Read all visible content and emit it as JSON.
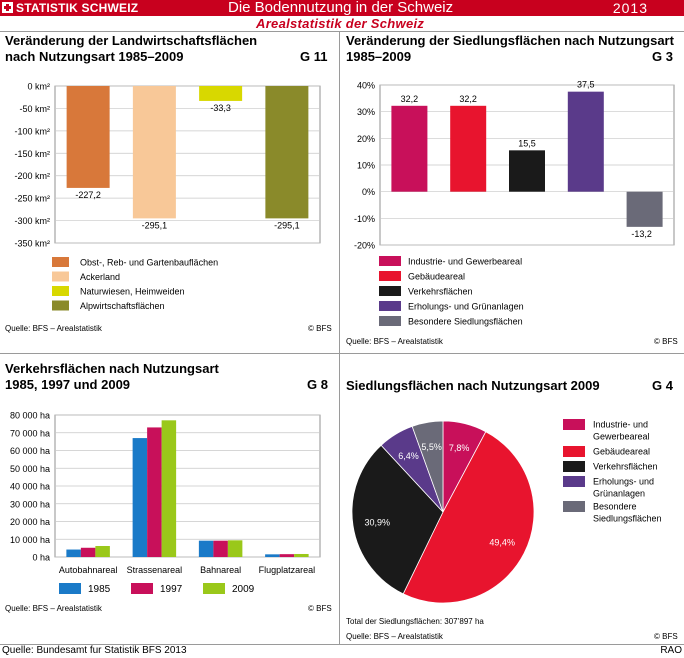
{
  "header": {
    "brand": "STATISTIK SCHWEIZ",
    "title": "Die Bodennutzung in der Schweiz",
    "year": "2013",
    "subtitle": "Arealstatistik der Schweiz"
  },
  "footer": {
    "source": "Quelle: Bundesamt fur Statistik BFS 2013",
    "code": "RAO"
  },
  "panels": {
    "g11": {
      "title_line1": "Veränderung der Landwirtschaftsflächen",
      "title_line2": "nach Nutzungsart 1985–2009",
      "number": "G 11",
      "source": "Quelle: BFS – Arealstatistik",
      "copyright": "© BFS"
    },
    "g3": {
      "title_line1": "Veränderung der Siedlungsflächen nach Nutzungsart",
      "title_line2": "1985–2009",
      "number": "G 3",
      "source": "Quelle: BFS – Arealstatistik",
      "copyright": "© BFS"
    },
    "g8": {
      "title_line1": "Verkehrsflächen nach Nutzungsart",
      "title_line2": "1985, 1997 und 2009",
      "number": "G 8",
      "source": "Quelle: BFS – Arealstatistik",
      "copyright": "© BFS"
    },
    "g4": {
      "title_line1": "Siedlungsflächen nach Nutzungsart 2009",
      "number": "G 4",
      "note": "Total der Siedlungsflächen: 307’897 ha",
      "source": "Quelle: BFS – Arealstatistik",
      "copyright": "© BFS"
    }
  },
  "chart_data": [
    {
      "id": "g11",
      "type": "bar",
      "categories": [
        "Obst-, Reb- und Gartenbauflächen",
        "Ackerland",
        "Naturwiesen, Heimweiden",
        "Alpwirtschaftsflächen"
      ],
      "values": [
        -227.2,
        -295.1,
        -33.3,
        -295.1
      ],
      "value_labels": [
        "-227,2",
        "-295,1",
        "-33,3",
        "-295,1"
      ],
      "colors": [
        "#d8783a",
        "#f8c898",
        "#d8d800",
        "#8a8a2a"
      ],
      "ylim": [
        -350,
        0
      ],
      "y_ticks": [
        0,
        -50,
        -100,
        -150,
        -200,
        -250,
        -300,
        -350
      ],
      "y_tick_labels": [
        "0 km²",
        "-50 km²",
        "-100 km²",
        "-150 km²",
        "-200 km²",
        "-250 km²",
        "-300 km²",
        "-350 km²"
      ],
      "grid": true,
      "legend": "bottom"
    },
    {
      "id": "g3",
      "type": "bar",
      "categories": [
        "Industrie- und Gewerbeareal",
        "Gebäudeareal",
        "Verkehrsflächen",
        "Erholungs- und Grünanlagen",
        "Besondere Siedlungsflächen"
      ],
      "values": [
        32.2,
        32.2,
        15.5,
        37.5,
        -13.2
      ],
      "value_labels": [
        "32,2",
        "32,2",
        "15,5",
        "37,5",
        "-13,2"
      ],
      "colors": [
        "#c8105a",
        "#e8142e",
        "#1a1a1a",
        "#5a3a8a",
        "#6a6a78"
      ],
      "ylim": [
        -20,
        40
      ],
      "y_ticks": [
        40,
        30,
        20,
        10,
        0,
        -10,
        -20
      ],
      "y_tick_labels": [
        "40%",
        "30%",
        "20%",
        "10%",
        "0%",
        "-10%",
        "-20%"
      ],
      "grid": true,
      "legend": "bottom"
    },
    {
      "id": "g8",
      "type": "bar",
      "categories": [
        "Autobahnareal",
        "Strassenareal",
        "Bahnareal",
        "Flugplatzareal"
      ],
      "series": [
        {
          "name": "1985",
          "values": [
            4200,
            67000,
            9200,
            1500
          ],
          "color": "#1a7ac8"
        },
        {
          "name": "1997",
          "values": [
            5200,
            73000,
            9200,
            1600
          ],
          "color": "#c8105a"
        },
        {
          "name": "2009",
          "values": [
            6200,
            77000,
            9400,
            1700
          ],
          "color": "#9ac81a"
        }
      ],
      "ylim": [
        0,
        80000
      ],
      "y_ticks": [
        80000,
        70000,
        60000,
        50000,
        40000,
        30000,
        20000,
        10000,
        0
      ],
      "y_tick_labels": [
        "80 000 ha",
        "70 000 ha",
        "60 000 ha",
        "50 000 ha",
        "40 000 ha",
        "30 000 ha",
        "20 000 ha",
        "10 000 ha",
        "0 ha"
      ],
      "grid": true,
      "legend": "bottom"
    },
    {
      "id": "g4",
      "type": "pie",
      "slices": [
        {
          "label": "Industrie- und Gewerbeareal",
          "legend_lines": [
            "Industrie- und",
            "Gewerbeareal"
          ],
          "value": 7.8,
          "value_label": "7,8%",
          "color": "#c8105a"
        },
        {
          "label": "Gebäudeareal",
          "legend_lines": [
            "Gebäudeareal"
          ],
          "value": 49.4,
          "value_label": "49,4%",
          "color": "#e8142e"
        },
        {
          "label": "Verkehrsflächen",
          "legend_lines": [
            "Verkehrsflächen"
          ],
          "value": 30.9,
          "value_label": "30,9%",
          "color": "#1a1a1a"
        },
        {
          "label": "Erholungs- und Grünanlagen",
          "legend_lines": [
            "Erholungs- und",
            "Grünanlagen"
          ],
          "value": 6.4,
          "value_label": "6,4%",
          "color": "#5a3a8a"
        },
        {
          "label": "Besondere Siedlungsflächen",
          "legend_lines": [
            "Besondere",
            "Siedlungsflächen"
          ],
          "value": 5.5,
          "value_label": "5,5%",
          "color": "#6a6a78"
        }
      ],
      "legend": "right"
    }
  ]
}
